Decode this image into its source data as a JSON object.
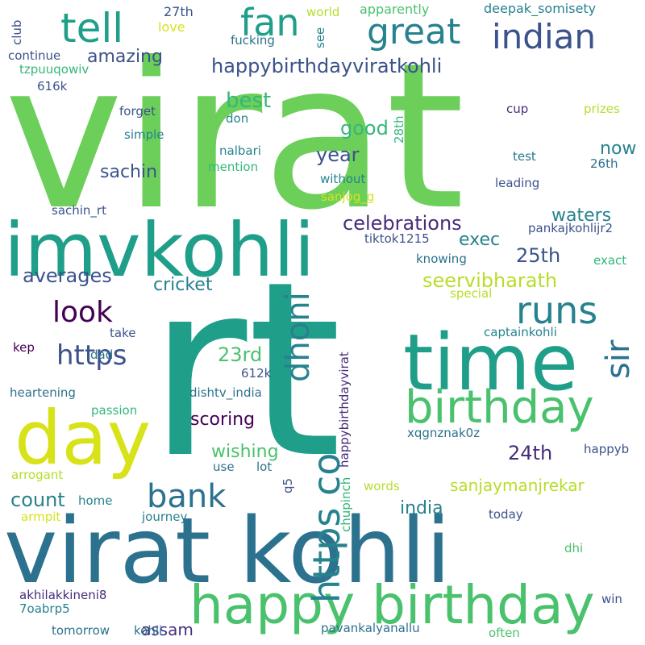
{
  "palette": {
    "background": "#ffffff",
    "light_green": "#6ccf5a",
    "teal": "#1f9e89",
    "teal_dark": "#26828e",
    "blue_teal": "#2c728e",
    "slate_blue": "#3b528b",
    "indigo": "#472d7b",
    "deep_purple": "#440154",
    "yellow": "#d8e219",
    "lime": "#b5de2b",
    "mid_green": "#35b779",
    "soft_green": "#4ac16d"
  },
  "words": {
    "virat": "virat",
    "rt": "rt",
    "imvkohli": "imvkohli",
    "virat_kohli": "virat kohli",
    "time": "time",
    "day": "day",
    "happy_birthday": "happy birthday",
    "birthday": "birthday",
    "tell": "tell",
    "fan": "fan",
    "great": "great",
    "indian": "indian",
    "runs": "runs",
    "https_big": "https co",
    "dhoni": "dhoni",
    "sir": "sir",
    "bank": "bank",
    "look": "look",
    "https": "https",
    "happybirthdayviratkohli": "happybirthdayviratkohli",
    "amazing": "amazing",
    "best": "best",
    "good": "good",
    "year": "year",
    "sachin": "sachin",
    "celebrations": "celebrations",
    "exec": "exec",
    "waters": "waters",
    "now": "now",
    "25th": "25th",
    "seervibharath": "seervibharath",
    "averages": "averages",
    "cricket": "cricket",
    "23rd": "23rd",
    "scoring": "scoring",
    "wishing": "wishing",
    "24th": "24th",
    "count": "count",
    "sanjaymanjrekar": "sanjaymanjrekar",
    "india": "india",
    "assam": "assam",
    "27th": "27th",
    "love": "love",
    "world": "world",
    "apparently": "apparently",
    "deepak_somisety": "deepak_somisety",
    "club": "club",
    "see": "see",
    "fucking": "fucking",
    "continue": "continue",
    "tzpuuqowiv": "tzpuuqowiv",
    "616k": "616k",
    "forget": "forget",
    "simple": "simple",
    "don": "don",
    "28th": "28th",
    "cup": "cup",
    "prizes": "prizes",
    "test": "test",
    "nalbari": "nalbari",
    "mention": "mention",
    "26th": "26th",
    "without": "without",
    "leading": "leading",
    "sanjog_g": "sanjog_g",
    "sachin_rt": "sachin_rt",
    "tiktok1215": "tiktok1215",
    "pankajkohlijr2": "pankajkohlijr2",
    "knowing": "knowing",
    "exact": "exact",
    "special": "special",
    "take": "take",
    "captainkohli": "captainkohli",
    "kep": "kep",
    "dad": "dad",
    "612k": "612k",
    "heartening": "heartening",
    "dishtv_india": "dishtv_india",
    "passion": "passion",
    "xqgnznak0z": "xqgnznak0z",
    "happyb": "happyb",
    "arrogant": "arrogant",
    "use": "use",
    "lot": "lot",
    "q5": "q5",
    "happybirthdayvirat": "happybirthdayvirat",
    "words": "words",
    "home": "home",
    "journey": "journey",
    "armpit": "armpit",
    "today": "today",
    "dhi": "dhi",
    "chupinch": "chupinch",
    "akhilakkineni8": "akhilakkineni8",
    "7oabrp5": "7oabrp5",
    "win": "win",
    "tomorrow": "tomorrow",
    "kohli": "kohli",
    "pavankalyanallu": "pavankalyanallu",
    "often": "often"
  }
}
